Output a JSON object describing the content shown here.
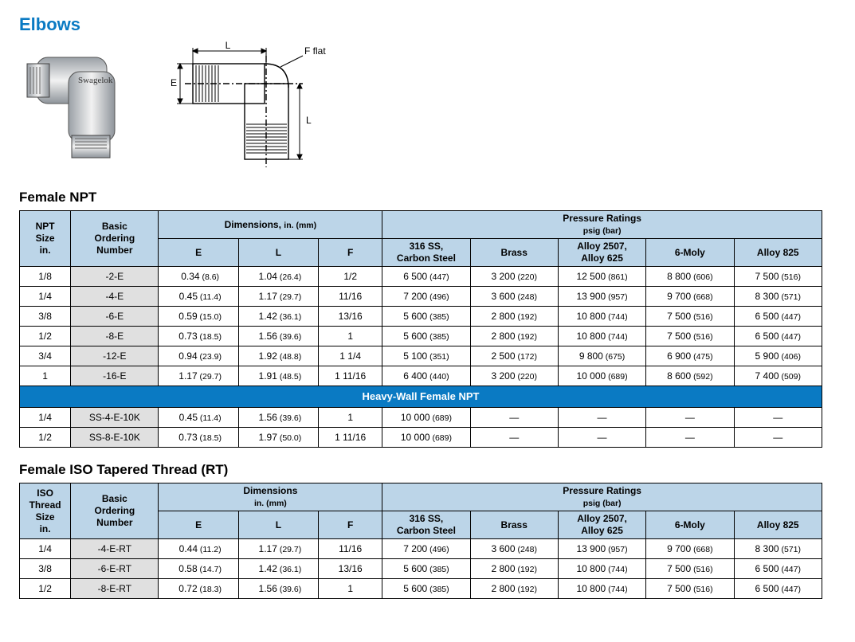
{
  "page_title": "Elbows",
  "diagram_labels": {
    "L": "L",
    "E": "E",
    "F": "F flat"
  },
  "section1": {
    "title": "Female NPT",
    "col_size": "NPT\nSize\nin.",
    "col_order": "Basic\nOrdering\nNumber",
    "dim_group": "Dimensions,",
    "dim_unit": "in. (mm)",
    "dim_E": "E",
    "dim_L": "L",
    "dim_F": "F",
    "pr_group": "Pressure Ratings",
    "pr_unit": "psig (bar)",
    "pr_cols": [
      "316 SS,\nCarbon Steel",
      "Brass",
      "Alloy 2507,\nAlloy 625",
      "6-Moly",
      "Alloy 825"
    ],
    "rows": [
      {
        "size": "1/8",
        "ord": "-2-E",
        "E": "0.34 (8.6)",
        "L": "1.04 (26.4)",
        "F": "1/2",
        "p": [
          "6 500 (447)",
          "3 200 (220)",
          "12 500 (861)",
          "8 800 (606)",
          "7 500 (516)"
        ]
      },
      {
        "size": "1/4",
        "ord": "-4-E",
        "E": "0.45 (11.4)",
        "L": "1.17 (29.7)",
        "F": "11/16",
        "p": [
          "7 200 (496)",
          "3 600 (248)",
          "13 900 (957)",
          "9 700 (668)",
          "8 300 (571)"
        ]
      },
      {
        "size": "3/8",
        "ord": "-6-E",
        "E": "0.59 (15.0)",
        "L": "1.42 (36.1)",
        "F": "13/16",
        "p": [
          "5 600 (385)",
          "2 800 (192)",
          "10 800 (744)",
          "7 500 (516)",
          "6 500 (447)"
        ]
      },
      {
        "size": "1/2",
        "ord": "-8-E",
        "E": "0.73 (18.5)",
        "L": "1.56 (39.6)",
        "F": "1",
        "p": [
          "5 600 (385)",
          "2 800 (192)",
          "10 800 (744)",
          "7 500 (516)",
          "6 500 (447)"
        ]
      },
      {
        "size": "3/4",
        "ord": "-12-E",
        "E": "0.94 (23.9)",
        "L": "1.92 (48.8)",
        "F": "1 1/4",
        "p": [
          "5 100 (351)",
          "2 500 (172)",
          "9 800 (675)",
          "6 900 (475)",
          "5 900 (406)"
        ]
      },
      {
        "size": "1",
        "ord": "-16-E",
        "E": "1.17 (29.7)",
        "L": "1.91 (48.5)",
        "F": "1 11/16",
        "p": [
          "6 400 (440)",
          "3 200 (220)",
          "10 000 (689)",
          "8 600 (592)",
          "7 400 (509)"
        ]
      }
    ],
    "band": "Heavy-Wall Female NPT",
    "heavy_rows": [
      {
        "size": "1/4",
        "ord": "SS-4-E-10K",
        "E": "0.45 (11.4)",
        "L": "1.56 (39.6)",
        "F": "1",
        "p": [
          "10 000 (689)",
          "—",
          "—",
          "—",
          "—"
        ]
      },
      {
        "size": "1/2",
        "ord": "SS-8-E-10K",
        "E": "0.73 (18.5)",
        "L": "1.97 (50.0)",
        "F": "1 11/16",
        "p": [
          "10 000 (689)",
          "—",
          "—",
          "—",
          "—"
        ]
      }
    ]
  },
  "section2": {
    "title": "Female ISO Tapered Thread (RT)",
    "col_size": "ISO\nThread\nSize\nin.",
    "col_order": "Basic\nOrdering\nNumber",
    "dim_group": "Dimensions",
    "dim_unit": "in. (mm)",
    "dim_E": "E",
    "dim_L": "L",
    "dim_F": "F",
    "pr_group": "Pressure Ratings",
    "pr_unit": "psig (bar)",
    "pr_cols": [
      "316 SS,\nCarbon Steel",
      "Brass",
      "Alloy 2507,\nAlloy 625",
      "6-Moly",
      "Alloy 825"
    ],
    "rows": [
      {
        "size": "1/4",
        "ord": "-4-E-RT",
        "E": "0.44 (11.2)",
        "L": "1.17 (29.7)",
        "F": "11/16",
        "p": [
          "7 200 (496)",
          "3 600 (248)",
          "13 900 (957)",
          "9 700 (668)",
          "8 300 (571)"
        ]
      },
      {
        "size": "3/8",
        "ord": "-6-E-RT",
        "E": "0.58 (14.7)",
        "L": "1.42 (36.1)",
        "F": "13/16",
        "p": [
          "5 600 (385)",
          "2 800 (192)",
          "10 800 (744)",
          "7 500 (516)",
          "6 500 (447)"
        ]
      },
      {
        "size": "1/2",
        "ord": "-8-E-RT",
        "E": "0.72 (18.3)",
        "L": "1.56 (39.6)",
        "F": "1",
        "p": [
          "5 600 (385)",
          "2 800 (192)",
          "10 800 (744)",
          "7 500 (516)",
          "6 500 (447)"
        ]
      }
    ]
  },
  "style": {
    "header_bg": "#bcd5e8",
    "band_bg": "#0a7ac3",
    "ord_bg": "#e0e0e0",
    "title_color": "#0a7ac3"
  }
}
